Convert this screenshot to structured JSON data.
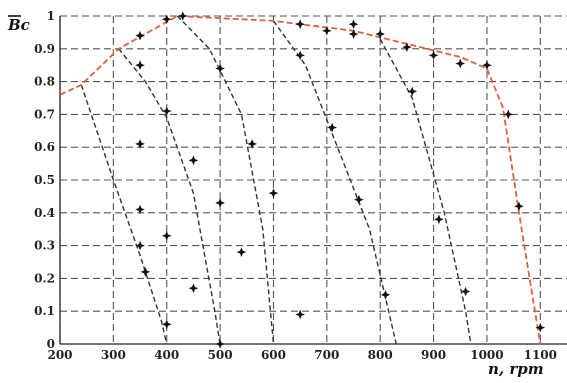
{
  "chart_data": {
    "type": "scatter",
    "xlabel": "n, rpm",
    "ylabel": "Bc",
    "xlim": [
      200,
      1150
    ],
    "ylim": [
      0,
      1
    ],
    "grid": true,
    "xticks": [
      "200",
      "300",
      "400",
      "500",
      "600",
      "700",
      "800",
      "900",
      "1000",
      "1100"
    ],
    "yticks": [
      "0",
      "0.1",
      "0.2",
      "0.3",
      "0.4",
      "0.5",
      "0.6",
      "0.7",
      "0.8",
      "0.9",
      "1"
    ],
    "envelope": {
      "color": "#e0603c",
      "points": [
        [
          200,
          0.76
        ],
        [
          240,
          0.79
        ],
        [
          310,
          0.9
        ],
        [
          420,
          1.0
        ],
        [
          600,
          0.985
        ],
        [
          750,
          0.955
        ],
        [
          850,
          0.915
        ],
        [
          950,
          0.875
        ],
        [
          1000,
          0.84
        ],
        [
          1030,
          0.72
        ],
        [
          1060,
          0.4
        ],
        [
          1080,
          0.2
        ],
        [
          1100,
          0.0
        ]
      ]
    },
    "curves": [
      {
        "color": "#333333",
        "points": [
          [
            240,
            0.79
          ],
          [
            300,
            0.5
          ],
          [
            350,
            0.27
          ],
          [
            390,
            0.07
          ],
          [
            400,
            0.0
          ]
        ]
      },
      {
        "color": "#333333",
        "points": [
          [
            310,
            0.9
          ],
          [
            360,
            0.8
          ],
          [
            400,
            0.69
          ],
          [
            450,
            0.46
          ],
          [
            490,
            0.1
          ],
          [
            500,
            0.0
          ]
        ]
      },
      {
        "color": "#333333",
        "points": [
          [
            420,
            1.0
          ],
          [
            480,
            0.9
          ],
          [
            540,
            0.7
          ],
          [
            580,
            0.35
          ],
          [
            600,
            0.0
          ]
        ]
      },
      {
        "color": "#333333",
        "points": [
          [
            600,
            0.985
          ],
          [
            660,
            0.85
          ],
          [
            720,
            0.6
          ],
          [
            780,
            0.35
          ],
          [
            820,
            0.07
          ],
          [
            830,
            0.0
          ]
        ]
      },
      {
        "color": "#333333",
        "points": [
          [
            800,
            0.93
          ],
          [
            860,
            0.75
          ],
          [
            920,
            0.4
          ],
          [
            960,
            0.1
          ],
          [
            970,
            0.0
          ]
        ]
      }
    ],
    "measured": {
      "color": "#111111",
      "points": [
        [
          350,
          0.94
        ],
        [
          400,
          0.99
        ],
        [
          430,
          1.0
        ],
        [
          650,
          0.975
        ],
        [
          700,
          0.955
        ],
        [
          750,
          0.975
        ],
        [
          750,
          0.945
        ],
        [
          800,
          0.945
        ],
        [
          850,
          0.905
        ],
        [
          900,
          0.88
        ],
        [
          950,
          0.855
        ],
        [
          1000,
          0.85
        ],
        [
          1040,
          0.7
        ],
        [
          1060,
          0.42
        ],
        [
          1100,
          0.05
        ],
        [
          350,
          0.85
        ],
        [
          400,
          0.71
        ],
        [
          350,
          0.61
        ],
        [
          450,
          0.56
        ],
        [
          350,
          0.41
        ],
        [
          400,
          0.33
        ],
        [
          350,
          0.3
        ],
        [
          360,
          0.22
        ],
        [
          450,
          0.17
        ],
        [
          400,
          0.06
        ],
        [
          500,
          0.84
        ],
        [
          560,
          0.61
        ],
        [
          500,
          0.43
        ],
        [
          540,
          0.28
        ],
        [
          500,
          0.0
        ],
        [
          650,
          0.88
        ],
        [
          710,
          0.66
        ],
        [
          600,
          0.46
        ],
        [
          760,
          0.44
        ],
        [
          650,
          0.09
        ],
        [
          860,
          0.77
        ],
        [
          910,
          0.38
        ],
        [
          810,
          0.15
        ],
        [
          960,
          0.16
        ]
      ]
    }
  }
}
